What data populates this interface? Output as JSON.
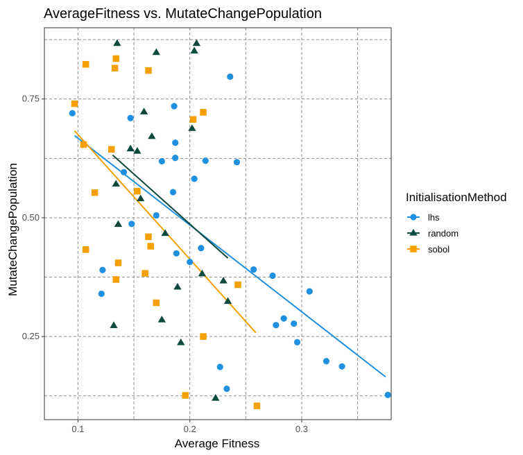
{
  "chart_data": {
    "type": "scatter",
    "title": "AverageFitness vs. MutateChangePopulation",
    "xlabel": "Average Fitness",
    "ylabel": "MutateChangePopulation",
    "xlim": [
      0.07,
      0.38
    ],
    "ylim": [
      0.075,
      0.9
    ],
    "x_ticks": [
      0.1,
      0.2,
      0.3
    ],
    "x_tick_labels": [
      "0.1",
      "0.2",
      "0.3"
    ],
    "y_ticks": [
      0.25,
      0.5,
      0.75
    ],
    "y_tick_labels": [
      "0.25",
      "0.50",
      "0.75"
    ],
    "grid": true,
    "legend_position": "right",
    "legend": {
      "title": "InitialisationMethod",
      "entries": [
        "lhs",
        "random",
        "sobol"
      ]
    },
    "colors": {
      "lhs": "#1f8fe0",
      "random": "#0b4a3c",
      "sobol": "#f5a000"
    },
    "series": [
      {
        "name": "lhs",
        "shape": "circle",
        "color": "#1f8fe0",
        "points": [
          [
            0.095,
            0.72
          ],
          [
            0.147,
            0.71
          ],
          [
            0.186,
            0.735
          ],
          [
            0.236,
            0.797
          ],
          [
            0.187,
            0.658
          ],
          [
            0.187,
            0.626
          ],
          [
            0.175,
            0.619
          ],
          [
            0.214,
            0.62
          ],
          [
            0.242,
            0.617
          ],
          [
            0.141,
            0.596
          ],
          [
            0.204,
            0.582
          ],
          [
            0.185,
            0.554
          ],
          [
            0.17,
            0.505
          ],
          [
            0.148,
            0.487
          ],
          [
            0.21,
            0.436
          ],
          [
            0.188,
            0.425
          ],
          [
            0.2,
            0.407
          ],
          [
            0.122,
            0.39
          ],
          [
            0.121,
            0.34
          ],
          [
            0.257,
            0.391
          ],
          [
            0.274,
            0.378
          ],
          [
            0.307,
            0.345
          ],
          [
            0.284,
            0.288
          ],
          [
            0.293,
            0.277
          ],
          [
            0.277,
            0.274
          ],
          [
            0.296,
            0.238
          ],
          [
            0.322,
            0.198
          ],
          [
            0.336,
            0.187
          ],
          [
            0.227,
            0.186
          ],
          [
            0.233,
            0.14
          ],
          [
            0.377,
            0.127
          ]
        ],
        "trend": [
          [
            0.097,
            0.673
          ],
          [
            0.375,
            0.165
          ]
        ]
      },
      {
        "name": "random",
        "shape": "triangle",
        "color": "#0b4a3c",
        "points": [
          [
            0.135,
            0.867
          ],
          [
            0.17,
            0.848
          ],
          [
            0.204,
            0.851
          ],
          [
            0.206,
            0.867
          ],
          [
            0.159,
            0.723
          ],
          [
            0.166,
            0.671
          ],
          [
            0.202,
            0.688
          ],
          [
            0.147,
            0.645
          ],
          [
            0.153,
            0.64
          ],
          [
            0.134,
            0.571
          ],
          [
            0.156,
            0.54
          ],
          [
            0.136,
            0.486
          ],
          [
            0.178,
            0.467
          ],
          [
            0.211,
            0.382
          ],
          [
            0.23,
            0.367
          ],
          [
            0.189,
            0.354
          ],
          [
            0.234,
            0.324
          ],
          [
            0.175,
            0.285
          ],
          [
            0.132,
            0.273
          ],
          [
            0.192,
            0.237
          ],
          [
            0.223,
            0.12
          ]
        ],
        "trend": [
          [
            0.131,
            0.632
          ],
          [
            0.234,
            0.415
          ]
        ]
      },
      {
        "name": "sobol",
        "shape": "square",
        "color": "#f5a000",
        "points": [
          [
            0.107,
            0.823
          ],
          [
            0.134,
            0.835
          ],
          [
            0.133,
            0.815
          ],
          [
            0.163,
            0.81
          ],
          [
            0.097,
            0.74
          ],
          [
            0.212,
            0.722
          ],
          [
            0.203,
            0.707
          ],
          [
            0.105,
            0.654
          ],
          [
            0.13,
            0.644
          ],
          [
            0.115,
            0.553
          ],
          [
            0.153,
            0.556
          ],
          [
            0.163,
            0.46
          ],
          [
            0.165,
            0.44
          ],
          [
            0.107,
            0.433
          ],
          [
            0.136,
            0.405
          ],
          [
            0.16,
            0.383
          ],
          [
            0.134,
            0.37
          ],
          [
            0.243,
            0.359
          ],
          [
            0.17,
            0.321
          ],
          [
            0.212,
            0.25
          ],
          [
            0.196,
            0.126
          ],
          [
            0.26,
            0.104
          ]
        ],
        "trend": [
          [
            0.097,
            0.683
          ],
          [
            0.259,
            0.258
          ]
        ]
      }
    ]
  }
}
